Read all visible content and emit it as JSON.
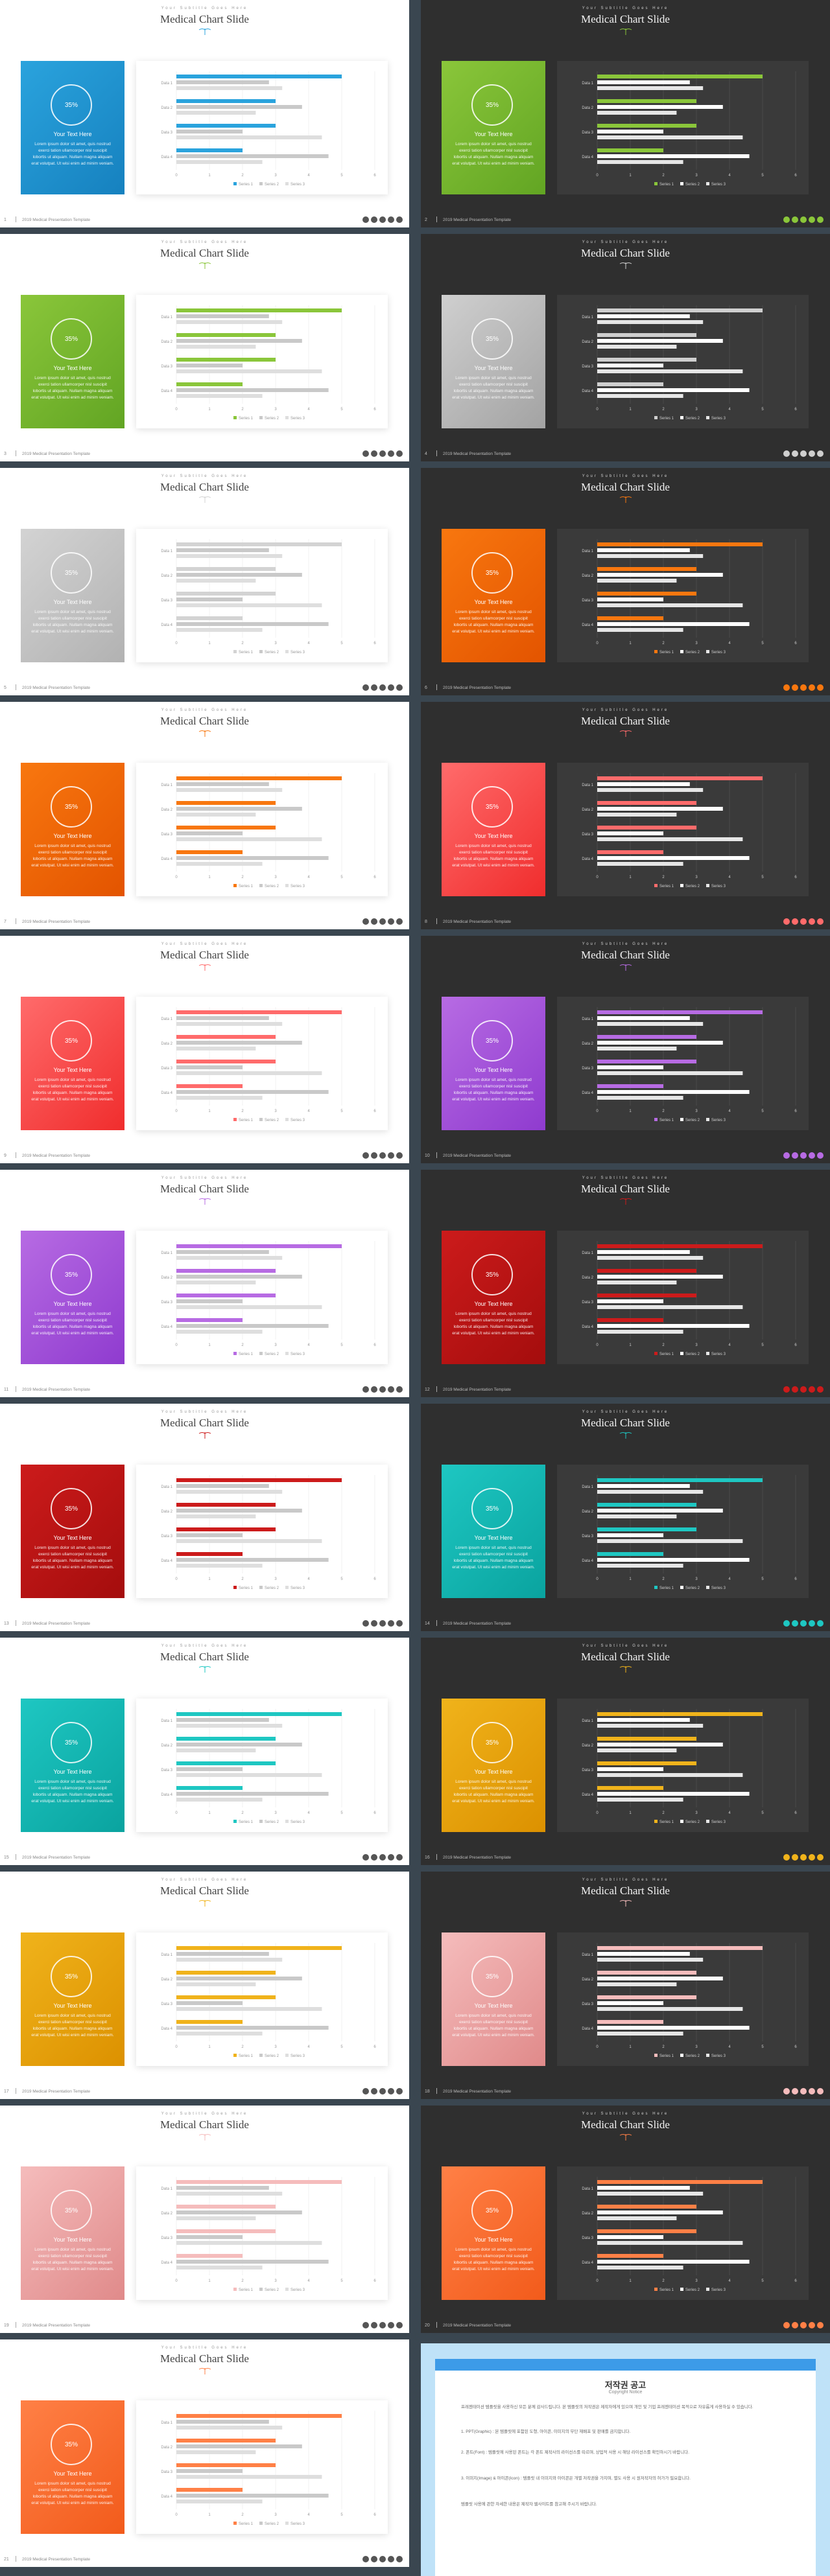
{
  "slide_template": {
    "subtitle": "Your Subtitle Goes Here",
    "title": "Medical Chart Slide",
    "card_percent": "35%",
    "card_title": "Your Text Here",
    "card_body": "Lorem ipsum dolor sit amet, quis nostrud exerci tation ullamcorper nisl suscipit lobortis ut aliquam. Nullam magna aliquam erat volutpat. Ut wisi enim ad minim veniam.",
    "footer_text": "2019 Medical Presentation Template"
  },
  "slides": [
    {
      "num": "1",
      "theme": "light",
      "accent": "#2aa3dd",
      "accent2": "#1681bf"
    },
    {
      "num": "2",
      "theme": "dark",
      "accent": "#8ac63a",
      "accent2": "#62a523"
    },
    {
      "num": "3",
      "theme": "light",
      "accent": "#8ac63a",
      "accent2": "#62a523"
    },
    {
      "num": "4",
      "theme": "dark",
      "accent": "#cfcfcf",
      "accent2": "#a3a3a3"
    },
    {
      "num": "5",
      "theme": "light",
      "accent": "#d3d3d3",
      "accent2": "#b2b2b2"
    },
    {
      "num": "6",
      "theme": "dark",
      "accent": "#f8770f",
      "accent2": "#e35400"
    },
    {
      "num": "7",
      "theme": "light",
      "accent": "#f8770f",
      "accent2": "#e35400"
    },
    {
      "num": "8",
      "theme": "dark",
      "accent": "#ff6b6b",
      "accent2": "#f02d2d"
    },
    {
      "num": "9",
      "theme": "light",
      "accent": "#ff6b6b",
      "accent2": "#f02d2d"
    },
    {
      "num": "10",
      "theme": "dark",
      "accent": "#b76be3",
      "accent2": "#8f3bcf"
    },
    {
      "num": "11",
      "theme": "light",
      "accent": "#b76be3",
      "accent2": "#8f3bcf"
    },
    {
      "num": "12",
      "theme": "dark",
      "accent": "#cc1b1b",
      "accent2": "#a40d0d"
    },
    {
      "num": "13",
      "theme": "light",
      "accent": "#cc1b1b",
      "accent2": "#a40d0d"
    },
    {
      "num": "14",
      "theme": "dark",
      "accent": "#1ec7c2",
      "accent2": "#0aa39f"
    },
    {
      "num": "15",
      "theme": "light",
      "accent": "#1ec7c2",
      "accent2": "#0aa39f"
    },
    {
      "num": "16",
      "theme": "dark",
      "accent": "#f0b31b",
      "accent2": "#dc9100"
    },
    {
      "num": "17",
      "theme": "light",
      "accent": "#f0b31b",
      "accent2": "#dc9100"
    },
    {
      "num": "18",
      "theme": "dark",
      "accent": "#f5bcbc",
      "accent2": "#e08a8a"
    },
    {
      "num": "19",
      "theme": "light",
      "accent": "#f5bcbc",
      "accent2": "#e08a8a"
    },
    {
      "num": "20",
      "theme": "dark",
      "accent": "#ff8046",
      "accent2": "#f25b1b"
    },
    {
      "num": "21",
      "theme": "light",
      "accent": "#ff8046",
      "accent2": "#f25b1b"
    }
  ],
  "chart_data": {
    "type": "bar",
    "orientation": "horizontal",
    "categories": [
      "Data 1",
      "Data 2",
      "Data 3",
      "Data 4"
    ],
    "series": [
      {
        "name": "Series 1",
        "values": [
          5.0,
          3.0,
          3.0,
          2.0
        ]
      },
      {
        "name": "Series 2",
        "values": [
          2.8,
          3.8,
          2.0,
          4.6
        ]
      },
      {
        "name": "Series 3",
        "values": [
          3.2,
          2.4,
          4.4,
          2.6
        ]
      }
    ],
    "xlim": [
      0,
      6
    ],
    "x_ticks": [
      "0",
      "1",
      "2",
      "3",
      "4",
      "5",
      "6"
    ],
    "legend": "bottom",
    "grid": true
  },
  "notice": {
    "title": "저작권 공고",
    "subtitle": "Copyright Notice",
    "para1": "프레젠테이션 템플릿을 사용하신 모든 분께 감사드립니다. 본 템플릿의 저작권은 제작자에게 있으며 개인 및 기업 프레젠테이션 목적으로 자유롭게 사용하실 수 있습니다.",
    "para2": "1. PPT(Graphic) : 본 템플릿에 포함된 도형, 아이콘, 이미지의 무단 재배포 및 판매를 금지합니다.",
    "para3": "2. 폰트(Font) : 템플릿에 사용된 폰트는 각 폰트 제작사의 라이선스를 따르며, 상업적 사용 시 해당 라이선스를 확인하시기 바랍니다.",
    "para4": "3. 이미지(Image) & 아이콘(Icon) : 템플릿 내 이미지와 아이콘은 개별 저작권을 가지며, 별도 사용 시 원저작자의 허가가 필요합니다.",
    "para5": "템플릿 사용에 관한 자세한 내용은 제작자 웹사이트를 참고해 주시기 바랍니다."
  }
}
